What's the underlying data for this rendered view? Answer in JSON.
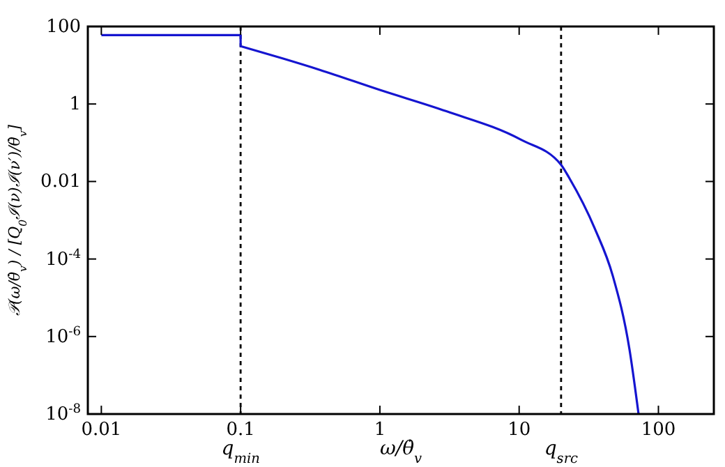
{
  "chart_data": {
    "type": "line",
    "xlabel": "ω/θ̇$_{v}$",
    "ylabel": "𝒫(ω/θ̇$_{v}$) / [Q$_{0}$ℐ(ν)ℐ(ν′)/θ̇$_{v}$]",
    "log": "xy",
    "grid": false,
    "marker": "none",
    "line_style": "solid",
    "xlim": [
      0.008,
      250
    ],
    "xticks": [
      0.01,
      0.1,
      1,
      10,
      100
    ],
    "ylim": [
      1e-08,
      100
    ],
    "yticks": [
      100,
      1,
      0.01,
      {
        "value": 0.0001,
        "label": "10$^{-4}$"
      },
      {
        "value": 1e-06,
        "label": "10$^{-6}$"
      },
      {
        "value": 1e-08,
        "label": "10$^{-8}$"
      }
    ],
    "series": [
      {
        "color": "#1515d0",
        "x": [
          0.01,
          0.1,
          0.1,
          0.2,
          0.37,
          1,
          3,
          10.3,
          20,
          23,
          35,
          47,
          62,
          72
        ],
        "values": [
          60,
          60,
          31,
          15,
          7.6,
          2.3,
          0.65,
          0.12,
          0.027,
          0.012,
          0.0006,
          3.7e-05,
          4.6e-07,
          1e-08
        ]
      }
    ],
    "ref_lines": [
      {
        "axis": "x",
        "value": 0.1,
        "label": "q$_{min}$",
        "color": "#000000",
        "line_style": "dashed"
      },
      {
        "axis": "x",
        "value": 20,
        "label": "q$_{src}$",
        "color": "#000000",
        "line_style": "dashed"
      }
    ]
  }
}
